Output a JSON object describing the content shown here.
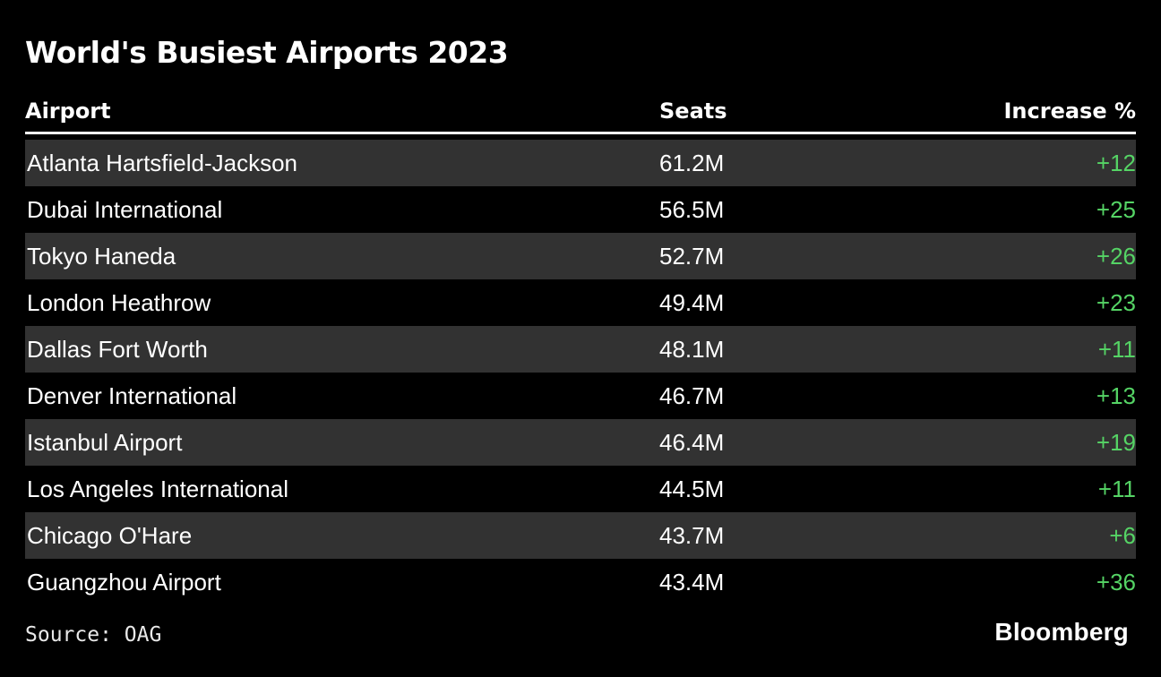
{
  "title": "World's Busiest Airports 2023",
  "table": {
    "columns": {
      "airport": "Airport",
      "seats": "Seats",
      "increase": "Increase %"
    },
    "rows": [
      {
        "airport": "Atlanta Hartsfield-Jackson",
        "seats": "61.2M",
        "increase": "+12"
      },
      {
        "airport": "Dubai International",
        "seats": "56.5M",
        "increase": "+25"
      },
      {
        "airport": "Tokyo Haneda",
        "seats": "52.7M",
        "increase": "+26"
      },
      {
        "airport": "London Heathrow",
        "seats": "49.4M",
        "increase": "+23"
      },
      {
        "airport": "Dallas Fort Worth",
        "seats": "48.1M",
        "increase": "+11"
      },
      {
        "airport": "Denver International",
        "seats": "46.7M",
        "increase": "+13"
      },
      {
        "airport": "Istanbul Airport",
        "seats": "46.4M",
        "increase": "+19"
      },
      {
        "airport": "Los Angeles International",
        "seats": "44.5M",
        "increase": "+11"
      },
      {
        "airport": "Chicago O'Hare",
        "seats": "43.7M",
        "increase": "+6"
      },
      {
        "airport": "Guangzhou Airport",
        "seats": "43.4M",
        "increase": "+36"
      }
    ]
  },
  "footer": {
    "source": "Source: OAG",
    "brand": "Bloomberg"
  },
  "colors": {
    "background": "#000000",
    "row_stripe": "#323232",
    "text": "#ffffff",
    "increase_green": "#55d465"
  },
  "chart_data": {
    "type": "table",
    "title": "World's Busiest Airports 2023",
    "columns": [
      "Airport",
      "Seats",
      "Increase %"
    ],
    "categories": [
      "Atlanta Hartsfield-Jackson",
      "Dubai International",
      "Tokyo Haneda",
      "London Heathrow",
      "Dallas Fort Worth",
      "Denver International",
      "Istanbul Airport",
      "Los Angeles International",
      "Chicago O'Hare",
      "Guangzhou Airport"
    ],
    "series": [
      {
        "name": "Seats",
        "unit": "M",
        "values": [
          61.2,
          56.5,
          52.7,
          49.4,
          48.1,
          46.7,
          46.4,
          44.5,
          43.7,
          43.4
        ]
      },
      {
        "name": "Increase %",
        "unit": "%",
        "values": [
          12,
          25,
          26,
          23,
          11,
          13,
          19,
          11,
          6,
          36
        ]
      }
    ],
    "layout": {
      "striped_rows": true,
      "stripe_on_rows": [
        1,
        3,
        5,
        7,
        9
      ],
      "theme": "dark"
    },
    "source": "OAG"
  }
}
